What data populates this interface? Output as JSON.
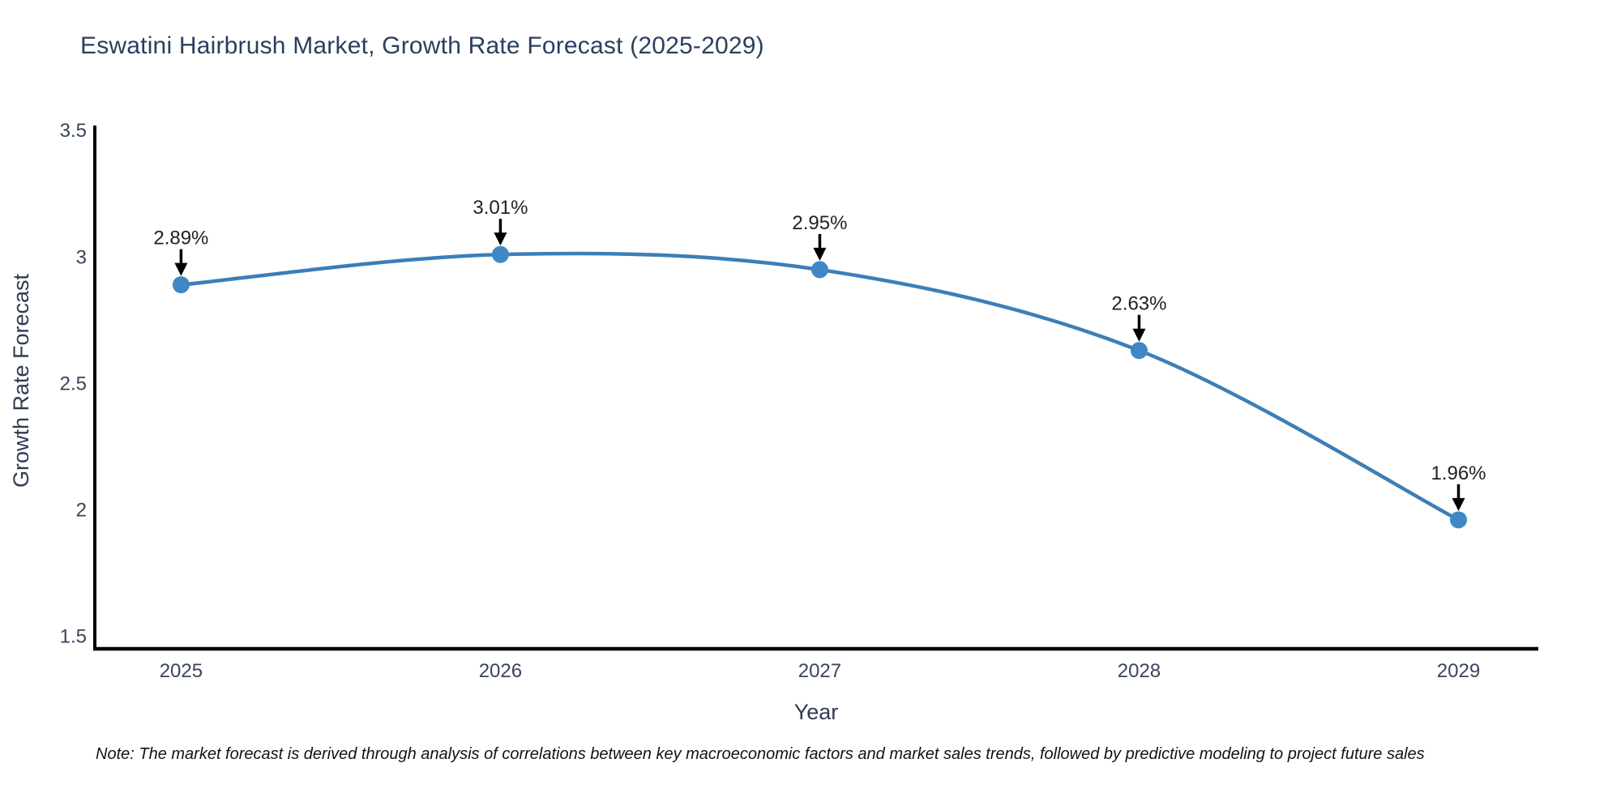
{
  "chart_data": {
    "type": "line",
    "title": "Eswatini Hairbrush Market, Growth Rate Forecast (2025-2029)",
    "xlabel": "Year",
    "ylabel": "Growth Rate Forecast",
    "x": [
      2025,
      2026,
      2027,
      2028,
      2029
    ],
    "x_tick_labels": [
      "2025",
      "2026",
      "2027",
      "2028",
      "2029"
    ],
    "values": [
      2.89,
      3.01,
      2.95,
      2.63,
      1.96
    ],
    "point_labels": [
      "2.89%",
      "3.01%",
      "2.95%",
      "2.63%",
      "1.96%"
    ],
    "y_tick_values": [
      1.5,
      2,
      2.5,
      3,
      3.5
    ],
    "y_tick_labels": [
      "1.5",
      "2",
      "2.5",
      "3",
      "3.5"
    ],
    "xlim": [
      2024.73,
      2029.25
    ],
    "ylim": [
      1.45,
      3.52
    ],
    "grid": false,
    "legend_position": "none",
    "curve": "spline",
    "line_color": "#3c7eb8",
    "marker_color": "#3f88c5",
    "annotation_color": "#222222",
    "arrow_color": "#000000",
    "axis_color": "#000000",
    "title_color": "#2a3f5f",
    "axis_title_color": "#2f3b52",
    "tick_color": "#39455a"
  },
  "note": "Note: The market forecast is derived through analysis of correlations between key macroeconomic factors and market sales trends, followed by predictive modeling to project future sales"
}
